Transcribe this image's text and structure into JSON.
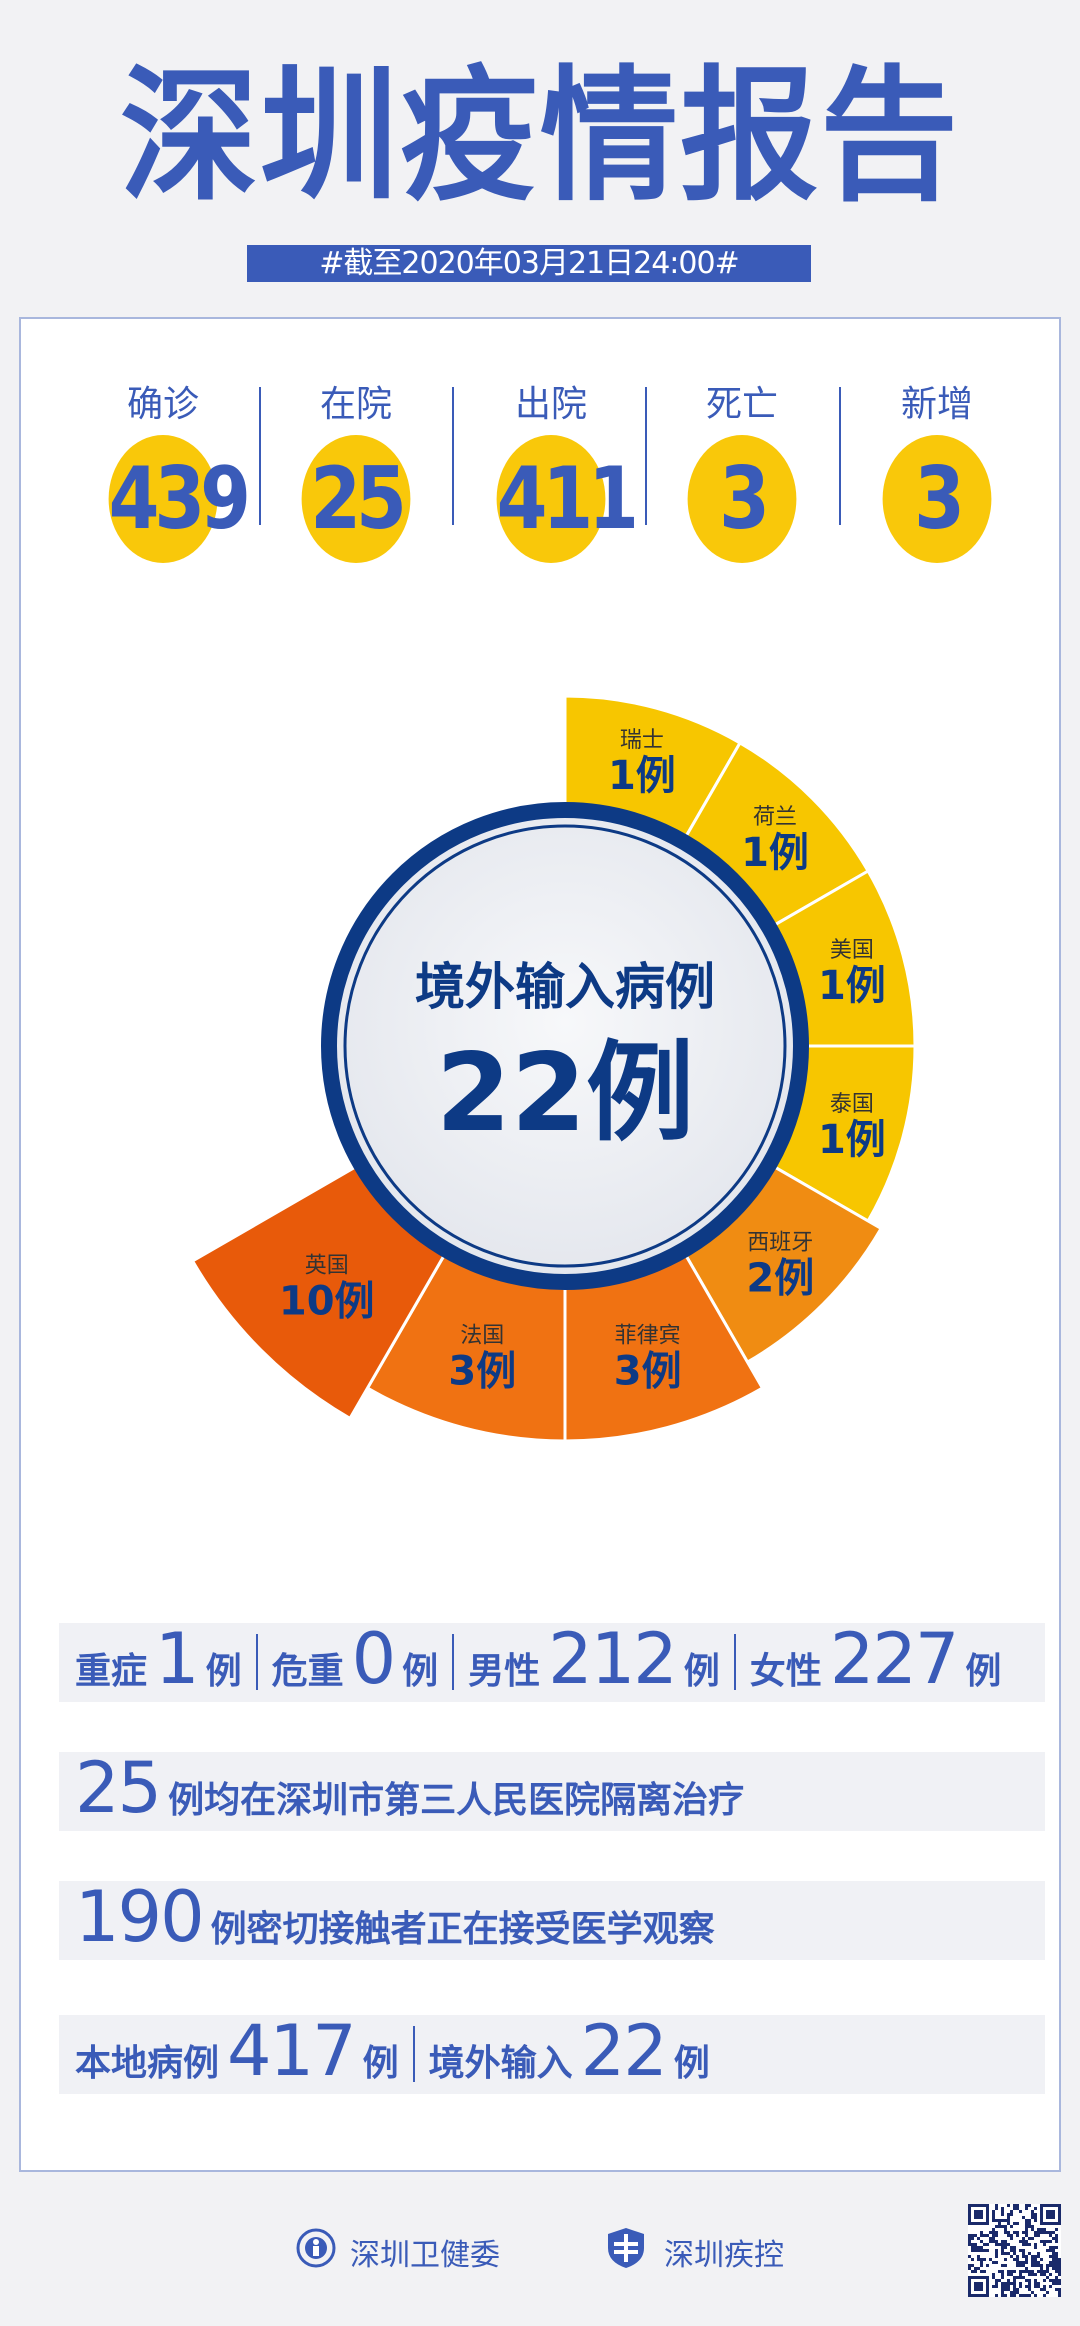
{
  "title": "深圳疫情报告",
  "date_banner": "#截至2020年03月21日24:00#",
  "stats": [
    {
      "label": "确诊",
      "value": "439"
    },
    {
      "label": "在院",
      "value": "25"
    },
    {
      "label": "出院",
      "value": "411"
    },
    {
      "label": "死亡",
      "value": "3"
    },
    {
      "label": "新增",
      "value": "3"
    }
  ],
  "chart_data": {
    "type": "pie",
    "variant": "rose",
    "center_title": "境外输入病例",
    "center_value": "22例",
    "unit": "例",
    "categories": [
      "瑞士",
      "荷兰",
      "美国",
      "泰国",
      "西班牙",
      "菲律宾",
      "法国",
      "英国"
    ],
    "values": [
      1,
      1,
      1,
      1,
      2,
      3,
      3,
      10
    ],
    "colors": [
      "#f7c600",
      "#f7c600",
      "#f7c600",
      "#f7c600",
      "#f08c12",
      "#f07212",
      "#f07212",
      "#e85a0a"
    ]
  },
  "rows": {
    "severity": {
      "severe_label": "重症",
      "severe": "1",
      "critical_label": "危重",
      "critical": "0",
      "male_label": "男性",
      "male": "212",
      "female_label": "女性",
      "female": "227",
      "unit": "例"
    },
    "hospital": {
      "count": "25",
      "text": "例均在深圳市第三人民医院隔离治疗"
    },
    "contacts": {
      "count": "190",
      "text": "例密切接触者正在接受医学观察"
    },
    "origin": {
      "local_label": "本地病例",
      "local": "417",
      "imported_label": "境外输入",
      "imported": "22",
      "unit": "例"
    }
  },
  "footer": {
    "org1": "深圳卫健委",
    "org2": "深圳疾控"
  },
  "colors": {
    "brand_blue": "#3a5bb8",
    "navy": "#0d3a85",
    "yellow": "#f9c80a",
    "background": "#f2f2f4"
  }
}
